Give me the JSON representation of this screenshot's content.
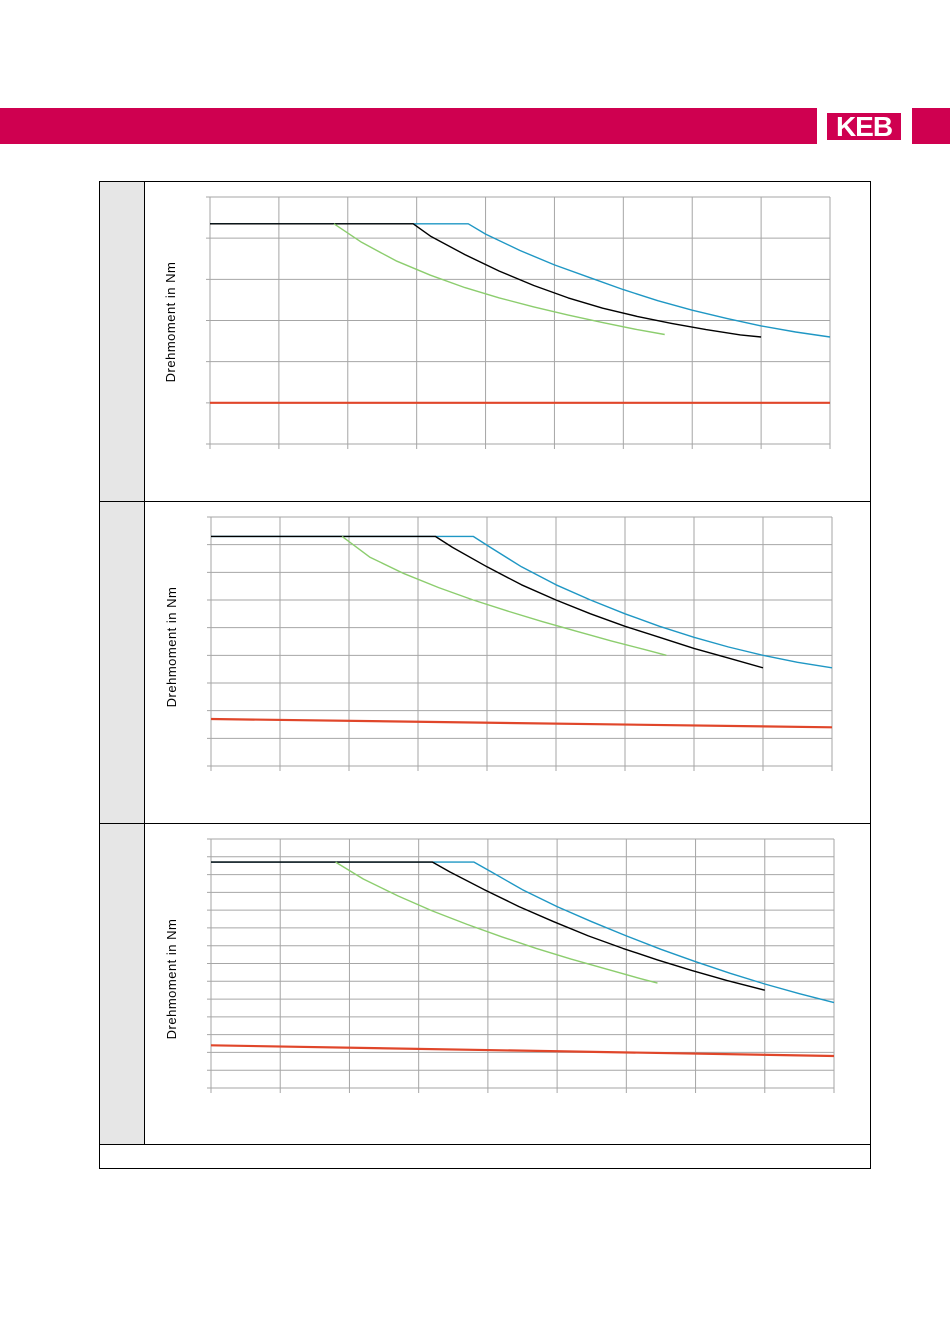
{
  "brand": {
    "logo_text": "KEB",
    "color": "#cf0050"
  },
  "chart_data": [
    {
      "type": "line",
      "ylabel": "Drehmoment in Nm",
      "xlim": [
        0,
        9
      ],
      "ylim": [
        0,
        6
      ],
      "x_gridlines": 9,
      "y_gridlines": 6,
      "grid": true,
      "series": [
        {
          "color": "#1f97c4",
          "points": [
            [
              0,
              5.35
            ],
            [
              3.75,
              5.35
            ],
            [
              4,
              5.1
            ],
            [
              4.5,
              4.7
            ],
            [
              5,
              4.35
            ],
            [
              5.5,
              4.05
            ],
            [
              6,
              3.75
            ],
            [
              6.5,
              3.48
            ],
            [
              7,
              3.25
            ],
            [
              7.5,
              3.05
            ],
            [
              8,
              2.87
            ],
            [
              8.5,
              2.72
            ],
            [
              9,
              2.6
            ]
          ]
        },
        {
          "color": "#000000",
          "points": [
            [
              0,
              5.35
            ],
            [
              2.95,
              5.35
            ],
            [
              3.2,
              5.05
            ],
            [
              3.7,
              4.6
            ],
            [
              4.2,
              4.2
            ],
            [
              4.7,
              3.85
            ],
            [
              5.2,
              3.55
            ],
            [
              5.7,
              3.3
            ],
            [
              6.2,
              3.1
            ],
            [
              6.7,
              2.93
            ],
            [
              7.2,
              2.78
            ],
            [
              7.7,
              2.65
            ],
            [
              8,
              2.6
            ]
          ]
        },
        {
          "color": "#8ccd6e",
          "points": [
            [
              1.8,
              5.35
            ],
            [
              2.2,
              4.9
            ],
            [
              2.7,
              4.45
            ],
            [
              3.2,
              4.1
            ],
            [
              3.7,
              3.8
            ],
            [
              4.2,
              3.55
            ],
            [
              4.7,
              3.33
            ],
            [
              5.2,
              3.13
            ],
            [
              5.7,
              2.95
            ],
            [
              6.2,
              2.78
            ],
            [
              6.6,
              2.66
            ]
          ]
        },
        {
          "color": "#e0462a",
          "points": [
            [
              0,
              1
            ],
            [
              9,
              1
            ]
          ]
        }
      ]
    },
    {
      "type": "line",
      "ylabel": "Drehmoment in Nm",
      "xlim": [
        0,
        9
      ],
      "ylim": [
        0,
        9
      ],
      "x_gridlines": 9,
      "y_gridlines": 9,
      "grid": true,
      "series": [
        {
          "color": "#1f97c4",
          "points": [
            [
              0,
              8.3
            ],
            [
              3.8,
              8.3
            ],
            [
              4.05,
              7.9
            ],
            [
              4.5,
              7.2
            ],
            [
              5,
              6.55
            ],
            [
              5.5,
              6
            ],
            [
              6,
              5.5
            ],
            [
              6.5,
              5.05
            ],
            [
              7,
              4.65
            ],
            [
              7.5,
              4.3
            ],
            [
              8,
              4
            ],
            [
              8.5,
              3.75
            ],
            [
              9,
              3.55
            ]
          ]
        },
        {
          "color": "#000000",
          "points": [
            [
              0,
              8.3
            ],
            [
              3.25,
              8.3
            ],
            [
              3.5,
              7.9
            ],
            [
              4,
              7.2
            ],
            [
              4.5,
              6.55
            ],
            [
              5,
              6
            ],
            [
              5.5,
              5.5
            ],
            [
              6,
              5.05
            ],
            [
              6.5,
              4.65
            ],
            [
              7,
              4.25
            ],
            [
              7.5,
              3.9
            ],
            [
              8,
              3.55
            ]
          ]
        },
        {
          "color": "#8ccd6e",
          "points": [
            [
              1.9,
              8.3
            ],
            [
              2.3,
              7.55
            ],
            [
              2.8,
              6.95
            ],
            [
              3.3,
              6.45
            ],
            [
              3.8,
              6
            ],
            [
              4.3,
              5.6
            ],
            [
              4.8,
              5.22
            ],
            [
              5.3,
              4.87
            ],
            [
              5.8,
              4.52
            ],
            [
              6.3,
              4.2
            ],
            [
              6.6,
              4.0
            ]
          ]
        },
        {
          "color": "#e0462a",
          "points": [
            [
              0,
              1.7
            ],
            [
              9,
              1.4
            ]
          ]
        }
      ]
    },
    {
      "type": "line",
      "ylabel": "Drehmoment in Nm",
      "xlim": [
        0,
        9
      ],
      "ylim": [
        0,
        14
      ],
      "x_gridlines": 9,
      "y_gridlines": 14,
      "grid": true,
      "series": [
        {
          "color": "#1f97c4",
          "points": [
            [
              0,
              12.7
            ],
            [
              3.8,
              12.7
            ],
            [
              4.05,
              12.15
            ],
            [
              4.5,
              11.15
            ],
            [
              5,
              10.2
            ],
            [
              5.5,
              9.35
            ],
            [
              6,
              8.55
            ],
            [
              6.5,
              7.8
            ],
            [
              7,
              7.1
            ],
            [
              7.5,
              6.45
            ],
            [
              8,
              5.85
            ],
            [
              8.5,
              5.3
            ],
            [
              9,
              4.8
            ]
          ]
        },
        {
          "color": "#000000",
          "points": [
            [
              0,
              12.7
            ],
            [
              3.2,
              12.7
            ],
            [
              3.45,
              12.15
            ],
            [
              3.95,
              11.15
            ],
            [
              4.45,
              10.2
            ],
            [
              4.95,
              9.35
            ],
            [
              5.45,
              8.55
            ],
            [
              5.95,
              7.85
            ],
            [
              6.45,
              7.2
            ],
            [
              6.95,
              6.6
            ],
            [
              7.45,
              6.05
            ],
            [
              8,
              5.5
            ]
          ]
        },
        {
          "color": "#8ccd6e",
          "points": [
            [
              1.8,
              12.7
            ],
            [
              2.2,
              11.75
            ],
            [
              2.7,
              10.8
            ],
            [
              3.2,
              9.95
            ],
            [
              3.7,
              9.2
            ],
            [
              4.2,
              8.5
            ],
            [
              4.7,
              7.85
            ],
            [
              5.2,
              7.25
            ],
            [
              5.7,
              6.7
            ],
            [
              6.2,
              6.15
            ],
            [
              6.45,
              5.9
            ]
          ]
        },
        {
          "color": "#e0462a",
          "points": [
            [
              0,
              2.4
            ],
            [
              9,
              1.8
            ]
          ]
        }
      ]
    }
  ]
}
